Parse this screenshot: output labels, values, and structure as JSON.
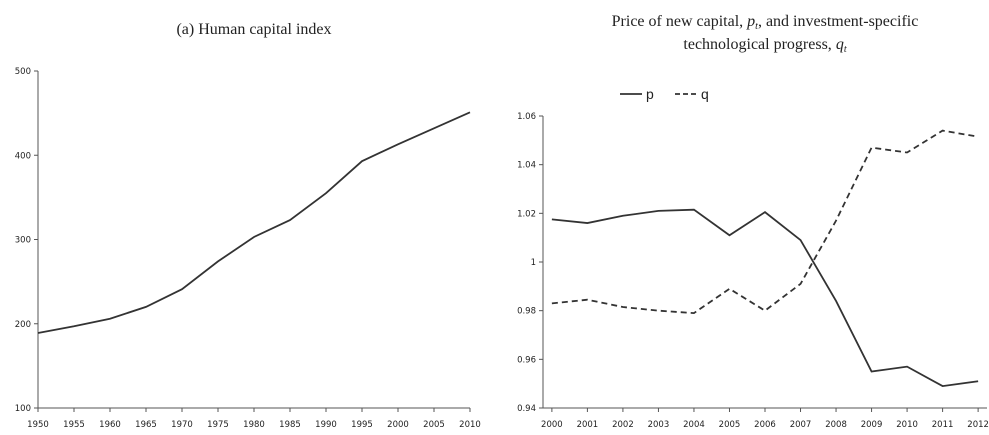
{
  "chart_data": [
    {
      "type": "line",
      "title": "(a) Human capital index",
      "x": [
        1950,
        1955,
        1960,
        1965,
        1970,
        1975,
        1980,
        1985,
        1990,
        1995,
        2000,
        2005,
        2010
      ],
      "values": [
        189,
        197,
        206,
        220,
        241,
        274,
        303,
        323,
        355,
        393,
        413,
        432,
        451
      ],
      "color": "#333333",
      "xlim": [
        1950,
        2010
      ],
      "xticks": [
        1950,
        1955,
        1960,
        1965,
        1970,
        1975,
        1980,
        1985,
        1990,
        1995,
        2000,
        2005,
        2010
      ],
      "ylim": [
        100,
        500
      ],
      "yticks": [
        100,
        200,
        300,
        400,
        500
      ]
    },
    {
      "type": "line",
      "title": [
        [
          "Price of new capital, ",
          "p",
          "t",
          ", and investment-specific"
        ],
        [
          "technological progress, ",
          "q",
          "t"
        ]
      ],
      "x": [
        2000,
        2001,
        2002,
        2003,
        2004,
        2005,
        2006,
        2007,
        2008,
        2009,
        2010,
        2011,
        2012
      ],
      "series": [
        {
          "name": "p",
          "color": "#333333",
          "dash": false,
          "values": [
            1.0175,
            1.016,
            1.019,
            1.021,
            1.0215,
            1.011,
            1.0205,
            1.009,
            0.984,
            0.955,
            0.957,
            0.949,
            0.951
          ]
        },
        {
          "name": "q",
          "color": "#333333",
          "dash": true,
          "values": [
            0.983,
            0.9845,
            0.9815,
            0.98,
            0.979,
            0.989,
            0.98,
            0.991,
            1.017,
            1.047,
            1.045,
            1.054,
            1.0515
          ]
        }
      ],
      "xlim": [
        1999.75,
        2012.25
      ],
      "xticks": [
        2000,
        2001,
        2002,
        2003,
        2004,
        2005,
        2006,
        2007,
        2008,
        2009,
        2010,
        2011,
        2012
      ],
      "ylim": [
        0.94,
        1.06
      ],
      "yticks": [
        0.94,
        0.96,
        0.98,
        1,
        1.02,
        1.04,
        1.06
      ]
    }
  ]
}
